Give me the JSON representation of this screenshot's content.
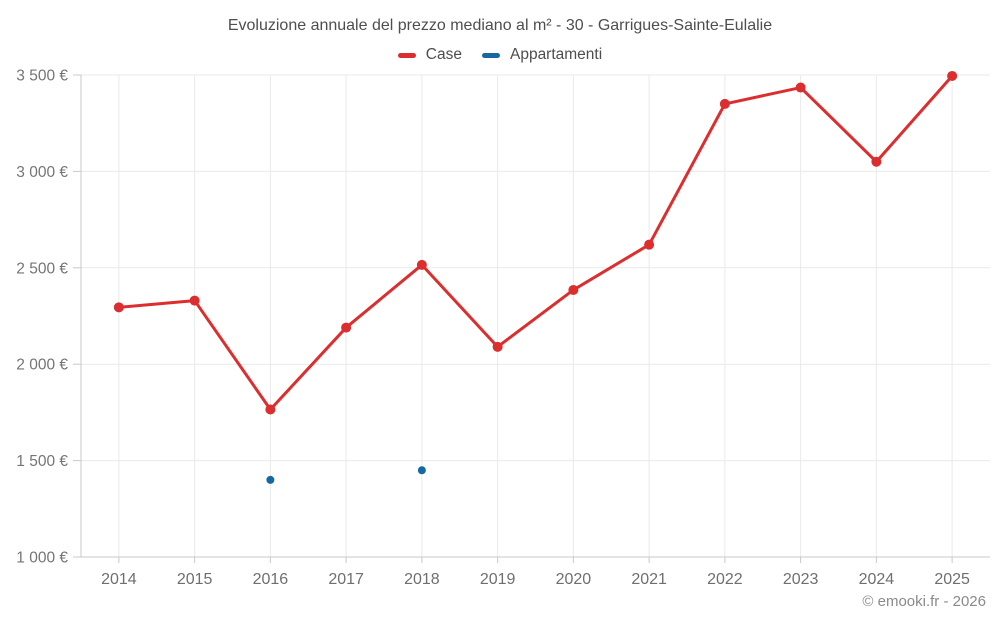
{
  "title": "Evoluzione annuale del prezzo mediano al m² - 30 - Garrigues-Sainte-Eulalie",
  "legend": {
    "items": [
      {
        "label": "Case",
        "color": "#dc2e2e"
      },
      {
        "label": "Appartamenti",
        "color": "#1669a0"
      }
    ]
  },
  "footer": "© emooki.fr - 2026",
  "chart_data": {
    "type": "line",
    "title": "Evoluzione annuale del prezzo mediano al m² - 30 - Garrigues-Sainte-Eulalie",
    "xlabel": "",
    "ylabel": "",
    "categories": [
      2014,
      2015,
      2016,
      2017,
      2018,
      2019,
      2020,
      2021,
      2022,
      2023,
      2024,
      2025
    ],
    "series": [
      {
        "name": "Case",
        "type": "line",
        "color": "#dc2e2e",
        "values": [
          2295,
          2330,
          1765,
          2190,
          2515,
          2090,
          2385,
          2620,
          3350,
          3435,
          3050,
          3495
        ]
      },
      {
        "name": "Appartamenti",
        "type": "scatter",
        "color": "#1669a0",
        "points": [
          {
            "x": 2016,
            "y": 1400
          },
          {
            "x": 2018,
            "y": 1450
          }
        ]
      }
    ],
    "ylim": [
      1000,
      3500
    ],
    "ytick_step": 500,
    "ytick_labels": [
      "1 000 €",
      "1 500 €",
      "2 000 €",
      "2 500 €",
      "3 000 €",
      "3 500 €"
    ],
    "grid": true,
    "legend_position": "top",
    "currency": "€"
  }
}
